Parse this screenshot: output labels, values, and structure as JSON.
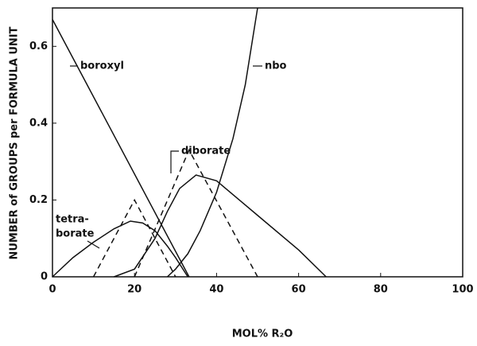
{
  "chart_data": {
    "type": "line",
    "xlabel": "MOL%  R₂O",
    "ylabel": "NUMBER of GROUPS per FORMULA UNIT",
    "xlim": [
      0,
      100
    ],
    "ylim": [
      0,
      0.7
    ],
    "xticks": [
      0,
      20,
      40,
      60,
      80,
      100
    ],
    "yticks": [
      0,
      0.2,
      0.4,
      0.6
    ],
    "annotations": [
      "boroxyl",
      "nbo",
      "diborate",
      "tetra-",
      "borate"
    ],
    "series": [
      {
        "color": "#111",
        "dash": false,
        "x": [
          0,
          33.3
        ],
        "values": [
          0.67,
          0
        ]
      },
      {
        "color": "#111",
        "dash": false,
        "x": [
          28,
          30,
          33,
          36,
          40,
          44,
          47,
          50
        ],
        "values": [
          0,
          0.02,
          0.06,
          0.12,
          0.22,
          0.36,
          0.5,
          0.7
        ]
      },
      {
        "color": "#111",
        "dash": false,
        "x": [
          0,
          5,
          10,
          15,
          19,
          22,
          25,
          28,
          30,
          33
        ],
        "values": [
          0,
          0.05,
          0.09,
          0.125,
          0.145,
          0.14,
          0.12,
          0.08,
          0.05,
          0
        ]
      },
      {
        "color": "#111",
        "dash": false,
        "x": [
          15,
          20,
          25,
          28,
          31,
          35,
          40,
          50,
          60,
          66.7
        ],
        "values": [
          0,
          0.02,
          0.1,
          0.17,
          0.23,
          0.265,
          0.25,
          0.16,
          0.07,
          0
        ]
      },
      {
        "color": "#111",
        "dash": true,
        "x": [
          10,
          20,
          30
        ],
        "values": [
          0,
          0.2,
          0
        ]
      },
      {
        "color": "#111",
        "dash": true,
        "x": [
          20,
          33.3,
          50
        ],
        "values": [
          0,
          0.33,
          0
        ]
      }
    ]
  }
}
